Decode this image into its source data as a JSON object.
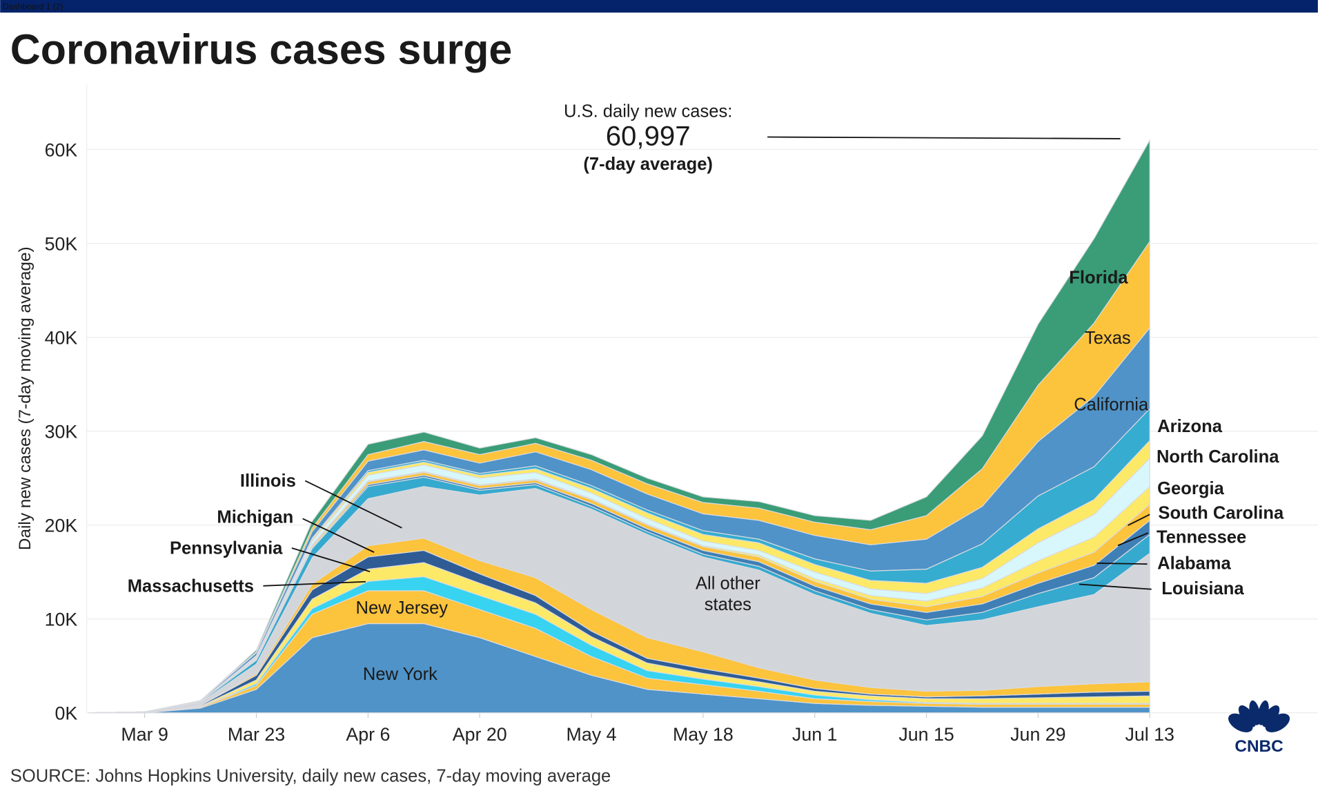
{
  "window": {
    "tab_label": "Dashboard 1 (2)"
  },
  "title": "Coronavirus cases surge",
  "annotation": {
    "line1": "U.S. daily new cases:",
    "value": "60,997",
    "line3": "(7-day average)"
  },
  "source": "SOURCE: Johns Hopkins University, daily new cases, 7-day moving average",
  "logo": "CNBC",
  "colors": {
    "topbar": "#05236a",
    "grid": "#ececec"
  },
  "chart_data": {
    "type": "area",
    "stacked": true,
    "title": "Coronavirus cases surge",
    "ylabel": "Daily new cases (7-day moving average)",
    "xlabel": "",
    "ylim": [
      0,
      60000
    ],
    "yticks": [
      0,
      10000,
      20000,
      30000,
      40000,
      50000,
      60000
    ],
    "ytick_labels": [
      "0K",
      "10K",
      "20K",
      "30K",
      "40K",
      "50K",
      "60K"
    ],
    "xtick_labels": [
      "Mar 9",
      "Mar 23",
      "Apr 6",
      "Apr 20",
      "May 4",
      "May 18",
      "Jun 1",
      "Jun 15",
      "Jun 29",
      "Jul 13"
    ],
    "x": [
      "2020-03-02",
      "2020-03-09",
      "2020-03-16",
      "2020-03-23",
      "2020-03-30",
      "2020-04-06",
      "2020-04-13",
      "2020-04-20",
      "2020-04-27",
      "2020-05-04",
      "2020-05-11",
      "2020-05-18",
      "2020-05-25",
      "2020-06-01",
      "2020-06-08",
      "2020-06-15",
      "2020-06-22",
      "2020-06-29",
      "2020-07-06",
      "2020-07-13"
    ],
    "units": "thousands of cases",
    "grid": true,
    "series": [
      {
        "name": "New York",
        "color": "#4f93c8",
        "values": [
          0,
          0,
          0.5,
          2.5,
          8,
          9.5,
          9.5,
          8,
          6,
          4,
          2.5,
          2,
          1.5,
          1,
          0.8,
          0.7,
          0.6,
          0.6,
          0.6,
          0.6
        ]
      },
      {
        "name": "New Jersey",
        "color": "#fcc33c",
        "values": [
          0,
          0,
          0.1,
          0.4,
          2.5,
          3.5,
          3.5,
          3,
          3,
          2,
          1.2,
          1,
          0.8,
          0.5,
          0.4,
          0.3,
          0.3,
          0.3,
          0.3,
          0.3
        ]
      },
      {
        "name": "Massachusetts",
        "color": "#37d3f0",
        "values": [
          0,
          0,
          0,
          0.2,
          0.6,
          1,
          1.5,
          1.5,
          1.5,
          1.2,
          0.8,
          0.6,
          0.5,
          0.4,
          0.2,
          0.1,
          0.1,
          0.1,
          0.1,
          0.1
        ]
      },
      {
        "name": "Pennsylvania",
        "color": "#fde968",
        "values": [
          0,
          0,
          0.1,
          0.4,
          1,
          1.3,
          1.5,
          1.3,
          1.2,
          0.9,
          0.8,
          0.6,
          0.5,
          0.4,
          0.4,
          0.4,
          0.5,
          0.6,
          0.7,
          0.8
        ]
      },
      {
        "name": "Michigan",
        "color": "#2f5c94",
        "values": [
          0,
          0,
          0.1,
          0.5,
          1,
          1.3,
          1.3,
          1,
          0.8,
          0.6,
          0.5,
          0.5,
          0.4,
          0.3,
          0.2,
          0.2,
          0.3,
          0.4,
          0.5,
          0.5
        ]
      },
      {
        "name": "Illinois",
        "color": "#fcc33c",
        "values": [
          0,
          0,
          0,
          0.2,
          0.6,
          1.2,
          1.3,
          1.4,
          1.9,
          2.3,
          2.2,
          1.8,
          1.1,
          0.9,
          0.7,
          0.6,
          0.6,
          0.8,
          0.9,
          1.0
        ]
      },
      {
        "name": "All other states",
        "color": "#d2d5da",
        "values": [
          0,
          0.1,
          0.3,
          1.0,
          2.8,
          5,
          5.5,
          7,
          9.5,
          10.7,
          11,
          10.1,
          10.4,
          9.1,
          7.9,
          7,
          7.5,
          8.5,
          9.5,
          13.7
        ]
      },
      {
        "name": "Louisiana",
        "color": "#36a9cf",
        "values": [
          0,
          0,
          0.1,
          0.4,
          1,
          1.3,
          1,
          0.5,
          0.4,
          0.3,
          0.3,
          0.3,
          0.4,
          0.4,
          0.4,
          0.6,
          0.8,
          1.4,
          1.8,
          2.0
        ]
      },
      {
        "name": "Alabama",
        "color": "#3f7fb5",
        "values": [
          0,
          0,
          0,
          0.1,
          0.1,
          0.2,
          0.2,
          0.2,
          0.2,
          0.3,
          0.3,
          0.4,
          0.5,
          0.5,
          0.6,
          0.8,
          0.9,
          1.1,
          1.3,
          1.5
        ]
      },
      {
        "name": "Tennessee",
        "color": "#fcc33c",
        "values": [
          0,
          0,
          0,
          0.1,
          0.2,
          0.3,
          0.3,
          0.3,
          0.3,
          0.4,
          0.4,
          0.4,
          0.5,
          0.5,
          0.5,
          0.6,
          0.8,
          1.1,
          1.4,
          1.7
        ]
      },
      {
        "name": "South Carolina",
        "color": "#fde968",
        "values": [
          0,
          0,
          0,
          0,
          0.1,
          0.1,
          0.1,
          0.1,
          0.1,
          0.1,
          0.1,
          0.1,
          0.2,
          0.3,
          0.4,
          0.6,
          0.9,
          1.3,
          1.6,
          1.9
        ]
      },
      {
        "name": "Georgia",
        "color": "#d8f7fc",
        "values": [
          0,
          0,
          0,
          0.1,
          0.4,
          0.6,
          0.7,
          0.7,
          0.7,
          0.6,
          0.6,
          0.5,
          0.5,
          0.7,
          0.7,
          0.8,
          1,
          1.9,
          2.4,
          3.0
        ]
      },
      {
        "name": "North Carolina",
        "color": "#fde968",
        "values": [
          0,
          0,
          0,
          0.1,
          0.2,
          0.3,
          0.3,
          0.3,
          0.4,
          0.5,
          0.6,
          0.7,
          0.8,
          0.8,
          0.9,
          1.1,
          1.2,
          1.5,
          1.6,
          1.9
        ]
      },
      {
        "name": "Arizona",
        "color": "#36acd0",
        "values": [
          0,
          0,
          0,
          0.1,
          0.1,
          0.2,
          0.2,
          0.2,
          0.3,
          0.3,
          0.3,
          0.4,
          0.4,
          0.6,
          1.0,
          1.5,
          2.5,
          3.5,
          3.5,
          3.4
        ]
      },
      {
        "name": "California",
        "color": "#4f93c8",
        "values": [
          0,
          0,
          0.1,
          0.3,
          0.7,
          1,
          1.1,
          1.1,
          1.5,
          1.7,
          1.7,
          1.8,
          2,
          2.5,
          2.8,
          3.2,
          4,
          5.8,
          7.5,
          8.6
        ]
      },
      {
        "name": "Texas",
        "color": "#fcc33c",
        "values": [
          0,
          0,
          0,
          0.1,
          0.4,
          0.7,
          0.9,
          0.9,
          0.9,
          1,
          1.1,
          1.2,
          1.3,
          1.4,
          1.6,
          2.5,
          4,
          6,
          7.8,
          9.2
        ]
      },
      {
        "name": "Florida",
        "color": "#3a9d77",
        "values": [
          0,
          0,
          0,
          0.2,
          0.7,
          1.1,
          1,
          0.7,
          0.6,
          0.6,
          0.6,
          0.6,
          0.7,
          0.7,
          1,
          2,
          3.5,
          6.5,
          9,
          10.8
        ]
      }
    ],
    "labels": {
      "florida": "Florida",
      "texas": "Texas",
      "california": "California",
      "arizona": "Arizona",
      "north_carolina": "North Carolina",
      "georgia": "Georgia",
      "south_carolina": "South Carolina",
      "tennessee": "Tennessee",
      "alabama": "Alabama",
      "louisiana": "Louisiana",
      "illinois": "Illinois",
      "michigan": "Michigan",
      "pennsylvania": "Pennsylvania",
      "massachusetts": "Massachusetts",
      "new_jersey": "New Jersey",
      "new_york": "New York",
      "other_1": "All other",
      "other_2": "states"
    }
  }
}
